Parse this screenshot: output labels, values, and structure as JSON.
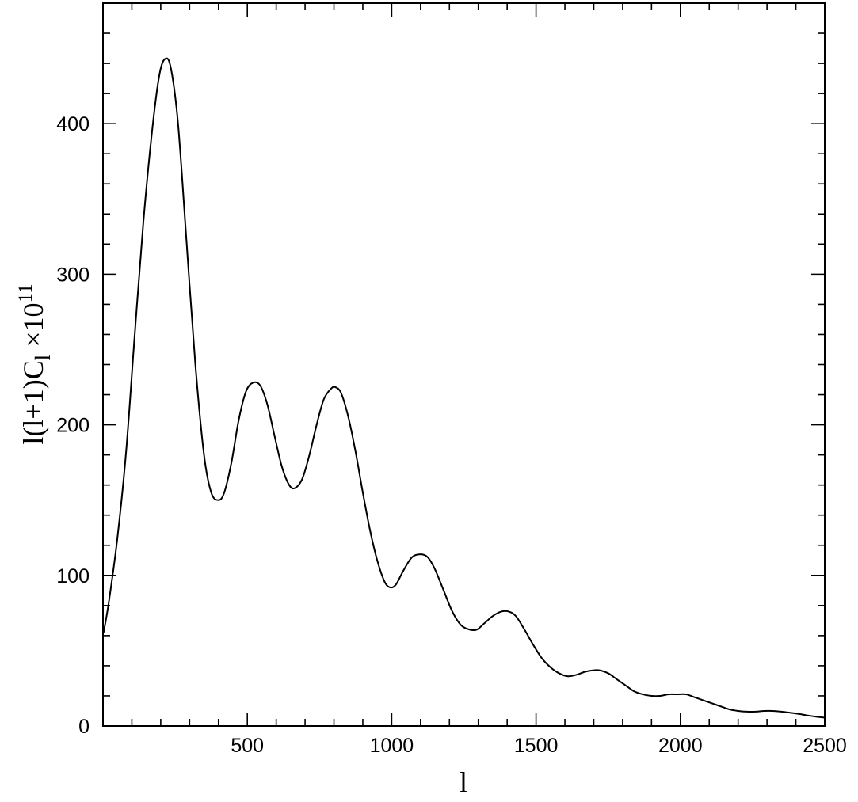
{
  "chart_data": {
    "type": "line",
    "title": "",
    "xlabel": "l",
    "ylabel": {
      "main": "l(l+1)C",
      "sub": "l",
      "mult": " ×10",
      "exp": "11"
    },
    "xlim": [
      0,
      2500
    ],
    "ylim": [
      0,
      480
    ],
    "x_ticks": [
      500,
      1000,
      1500,
      2000,
      2500
    ],
    "x_tick_labels": [
      "500",
      "1000",
      "1500",
      "2000",
      "2500"
    ],
    "y_ticks": [
      0,
      100,
      200,
      300,
      400
    ],
    "y_tick_labels": [
      "0",
      "100",
      "200",
      "300",
      "400"
    ],
    "grid": false,
    "legend": "none",
    "series": [
      {
        "points": [
          [
            2,
            62
          ],
          [
            20,
            82
          ],
          [
            50,
            125
          ],
          [
            80,
            182
          ],
          [
            110,
            260
          ],
          [
            140,
            335
          ],
          [
            170,
            395
          ],
          [
            195,
            432
          ],
          [
            215,
            443
          ],
          [
            235,
            437
          ],
          [
            260,
            400
          ],
          [
            290,
            320
          ],
          [
            320,
            240
          ],
          [
            350,
            180
          ],
          [
            375,
            155
          ],
          [
            400,
            150
          ],
          [
            420,
            155
          ],
          [
            445,
            175
          ],
          [
            470,
            203
          ],
          [
            495,
            222
          ],
          [
            520,
            228
          ],
          [
            545,
            226
          ],
          [
            570,
            213
          ],
          [
            595,
            192
          ],
          [
            620,
            172
          ],
          [
            645,
            160
          ],
          [
            665,
            158
          ],
          [
            690,
            164
          ],
          [
            715,
            180
          ],
          [
            740,
            200
          ],
          [
            765,
            217
          ],
          [
            790,
            224
          ],
          [
            805,
            225
          ],
          [
            825,
            221
          ],
          [
            850,
            205
          ],
          [
            875,
            182
          ],
          [
            900,
            155
          ],
          [
            925,
            130
          ],
          [
            950,
            110
          ],
          [
            975,
            96
          ],
          [
            995,
            92
          ],
          [
            1015,
            94
          ],
          [
            1040,
            103
          ],
          [
            1070,
            112
          ],
          [
            1100,
            114
          ],
          [
            1125,
            112
          ],
          [
            1150,
            104
          ],
          [
            1180,
            90
          ],
          [
            1210,
            76
          ],
          [
            1240,
            67
          ],
          [
            1270,
            64
          ],
          [
            1295,
            64
          ],
          [
            1320,
            68
          ],
          [
            1350,
            73
          ],
          [
            1380,
            76
          ],
          [
            1405,
            76
          ],
          [
            1430,
            73
          ],
          [
            1460,
            64
          ],
          [
            1490,
            54
          ],
          [
            1520,
            45
          ],
          [
            1550,
            39
          ],
          [
            1580,
            35
          ],
          [
            1610,
            33
          ],
          [
            1640,
            34
          ],
          [
            1670,
            36
          ],
          [
            1700,
            37
          ],
          [
            1720,
            37
          ],
          [
            1750,
            35
          ],
          [
            1780,
            31
          ],
          [
            1810,
            27
          ],
          [
            1840,
            23
          ],
          [
            1870,
            21
          ],
          [
            1900,
            20
          ],
          [
            1930,
            20
          ],
          [
            1960,
            21
          ],
          [
            1990,
            21
          ],
          [
            2020,
            21
          ],
          [
            2050,
            19
          ],
          [
            2080,
            17
          ],
          [
            2110,
            15
          ],
          [
            2140,
            13
          ],
          [
            2170,
            11
          ],
          [
            2200,
            10
          ],
          [
            2230,
            9.5
          ],
          [
            2260,
            9.5
          ],
          [
            2290,
            10
          ],
          [
            2320,
            10
          ],
          [
            2350,
            9.5
          ],
          [
            2380,
            8.8
          ],
          [
            2410,
            8
          ],
          [
            2440,
            7
          ],
          [
            2470,
            6.2
          ],
          [
            2500,
            5.5
          ]
        ]
      }
    ]
  }
}
